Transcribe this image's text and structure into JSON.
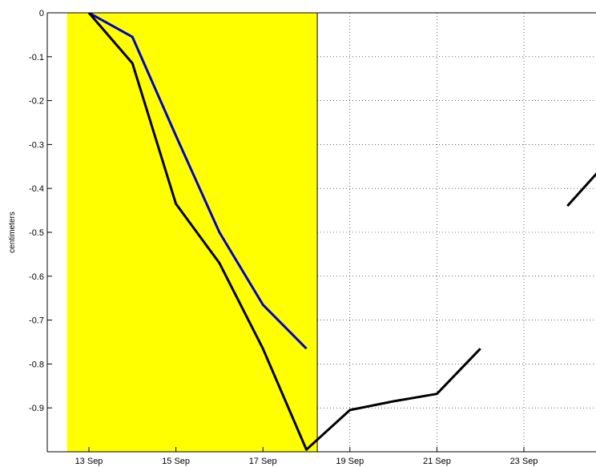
{
  "chart_data": {
    "type": "line",
    "ylabel": "centimeters",
    "x_axis": {
      "ticks": [
        {
          "date": "2000-09-13",
          "label": "13 Sep"
        },
        {
          "date": "2000-09-15",
          "label": "15 Sep"
        },
        {
          "date": "2000-09-17",
          "label": "17 Sep"
        },
        {
          "date": "2000-09-19",
          "label": "19 Sep"
        },
        {
          "date": "2000-09-21",
          "label": "21 Sep"
        },
        {
          "date": "2000-09-23",
          "label": "23 Sep"
        }
      ],
      "range": [
        "2000-09-12 12:00",
        "2000-09-24 12:00"
      ]
    },
    "y_axis": {
      "ticks": [
        {
          "value": 0,
          "label": "0"
        },
        {
          "value": -0.1,
          "label": "-0.1"
        },
        {
          "value": -0.2,
          "label": "-0.2"
        },
        {
          "value": -0.3,
          "label": "-0.3"
        },
        {
          "value": -0.4,
          "label": "-0.4"
        },
        {
          "value": -0.5,
          "label": "-0.5"
        },
        {
          "value": -0.6,
          "label": "-0.6"
        },
        {
          "value": -0.7,
          "label": "-0.7"
        },
        {
          "value": -0.8,
          "label": "-0.8"
        },
        {
          "value": -0.9,
          "label": "-0.9"
        }
      ],
      "range": [
        -1.0,
        0
      ]
    },
    "grid": "dotted, vertical and horizontal, outside shaded region",
    "shaded_region": {
      "from": "2000-09-12 12:00",
      "to": "2000-09-18 06:00",
      "color": "#ffff00"
    },
    "series": [
      {
        "color": "#0000cc",
        "segments": [
          [
            {
              "x": "2000-09-13 00:00",
              "y": 0.0
            },
            {
              "x": "2000-09-14 00:00",
              "y": -0.055
            },
            {
              "x": "2000-09-15 00:00",
              "y": -0.28
            },
            {
              "x": "2000-09-16 00:00",
              "y": -0.5
            },
            {
              "x": "2000-09-17 00:00",
              "y": -0.665
            },
            {
              "x": "2000-09-18 00:00",
              "y": -0.765
            }
          ]
        ]
      },
      {
        "color": "#000000",
        "segments": [
          [
            {
              "x": "2000-09-13 00:00",
              "y": 0.0
            },
            {
              "x": "2000-09-14 00:00",
              "y": -0.115
            },
            {
              "x": "2000-09-15 00:00",
              "y": -0.435
            },
            {
              "x": "2000-09-16 00:00",
              "y": -0.57
            },
            {
              "x": "2000-09-17 00:00",
              "y": -0.765
            },
            {
              "x": "2000-09-18 00:00",
              "y": -0.995
            },
            {
              "x": "2000-09-19 00:00",
              "y": -0.905
            },
            {
              "x": "2000-09-20 00:00",
              "y": -0.885
            },
            {
              "x": "2000-09-21 00:00",
              "y": -0.868
            },
            {
              "x": "2000-09-22 00:00",
              "y": -0.765
            }
          ],
          [
            {
              "x": "2000-09-24 00:00",
              "y": -0.44
            },
            {
              "x": "2000-09-25 00:00",
              "y": -0.33
            }
          ]
        ]
      }
    ]
  }
}
